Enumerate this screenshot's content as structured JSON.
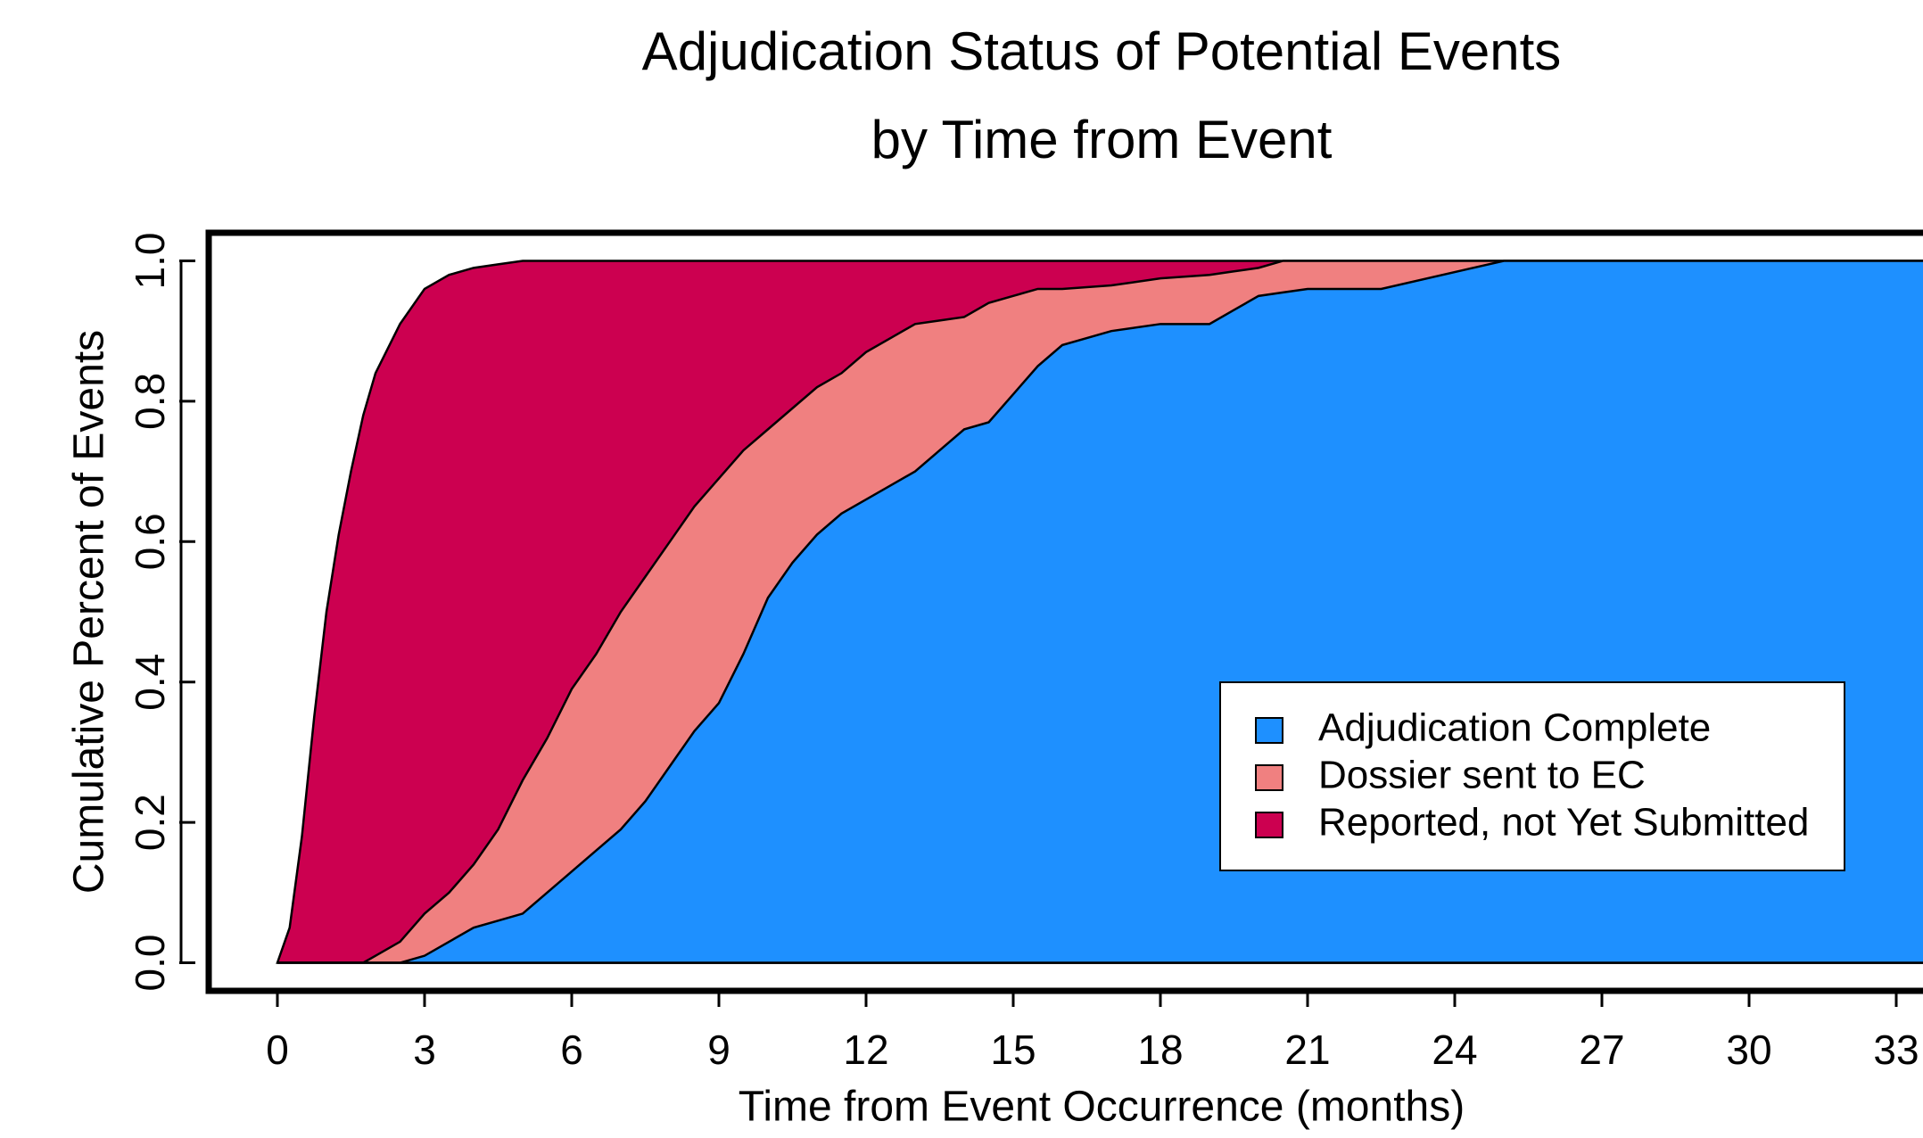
{
  "chart_data": {
    "type": "area",
    "title": "Adjudication Status of Potential Events",
    "subtitle": "by Time from Event",
    "x_label": "Time from Event Occurrence (months)",
    "y_label": "Cumulative Percent of Events",
    "x": [
      0,
      0.25,
      0.5,
      0.75,
      1,
      1.25,
      1.5,
      1.75,
      2,
      2.5,
      3,
      3.5,
      4,
      4.5,
      5,
      5.5,
      6,
      6.5,
      7,
      7.5,
      8,
      8.5,
      9,
      9.5,
      10,
      10.5,
      11,
      11.5,
      12,
      12.5,
      13,
      13.5,
      14,
      14.5,
      15,
      15.5,
      16,
      17,
      18,
      19,
      19.5,
      20,
      20.5,
      21,
      22.5,
      25,
      33,
      35.5
    ],
    "series": [
      {
        "name": "Adjudication Complete",
        "color": "#1e90ff",
        "values": [
          0,
          0,
          0,
          0,
          0,
          0,
          0,
          0,
          0,
          0,
          0.01,
          0.03,
          0.05,
          0.06,
          0.07,
          0.1,
          0.13,
          0.16,
          0.19,
          0.23,
          0.28,
          0.33,
          0.37,
          0.44,
          0.52,
          0.57,
          0.61,
          0.64,
          0.66,
          0.68,
          0.7,
          0.73,
          0.76,
          0.77,
          0.81,
          0.85,
          0.88,
          0.9,
          0.91,
          0.91,
          0.93,
          0.95,
          0.955,
          0.96,
          0.96,
          1,
          1,
          1
        ]
      },
      {
        "name": "Dossier sent to EC",
        "color": "#f08080",
        "values": [
          0,
          0,
          0,
          0,
          0,
          0,
          0,
          0,
          0.01,
          0.03,
          0.07,
          0.1,
          0.14,
          0.19,
          0.26,
          0.32,
          0.39,
          0.44,
          0.5,
          0.55,
          0.6,
          0.65,
          0.69,
          0.73,
          0.76,
          0.79,
          0.82,
          0.84,
          0.87,
          0.89,
          0.91,
          0.915,
          0.92,
          0.94,
          0.95,
          0.96,
          0.96,
          0.965,
          0.975,
          0.98,
          0.985,
          0.99,
          1,
          1,
          1,
          1,
          1,
          1
        ]
      },
      {
        "name": "Reported, not Yet Submitted",
        "color": "#cc0050",
        "values": [
          0,
          0.05,
          0.18,
          0.35,
          0.5,
          0.61,
          0.7,
          0.78,
          0.84,
          0.91,
          0.96,
          0.98,
          0.99,
          0.995,
          1,
          1,
          1,
          1,
          1,
          1,
          1,
          1,
          1,
          1,
          1,
          1,
          1,
          1,
          1,
          1,
          1,
          1,
          1,
          1,
          1,
          1,
          1,
          1,
          1,
          1,
          1,
          1,
          1,
          1,
          1,
          1,
          1,
          1
        ]
      }
    ],
    "xlim": [
      -1.4,
      36
    ],
    "ylim": [
      -0.04,
      1.04
    ],
    "xticks": [
      0,
      3,
      6,
      9,
      12,
      15,
      18,
      21,
      24,
      27,
      30,
      33
    ],
    "yticks": [
      {
        "value": 0,
        "label": "0.0"
      },
      {
        "value": 0.2,
        "label": "0.2"
      },
      {
        "value": 0.4,
        "label": "0.4"
      },
      {
        "value": 0.6,
        "label": "0.6"
      },
      {
        "value": 0.8,
        "label": "0.8"
      },
      {
        "value": 1,
        "label": "1.0"
      }
    ],
    "legend": "bottomright"
  }
}
